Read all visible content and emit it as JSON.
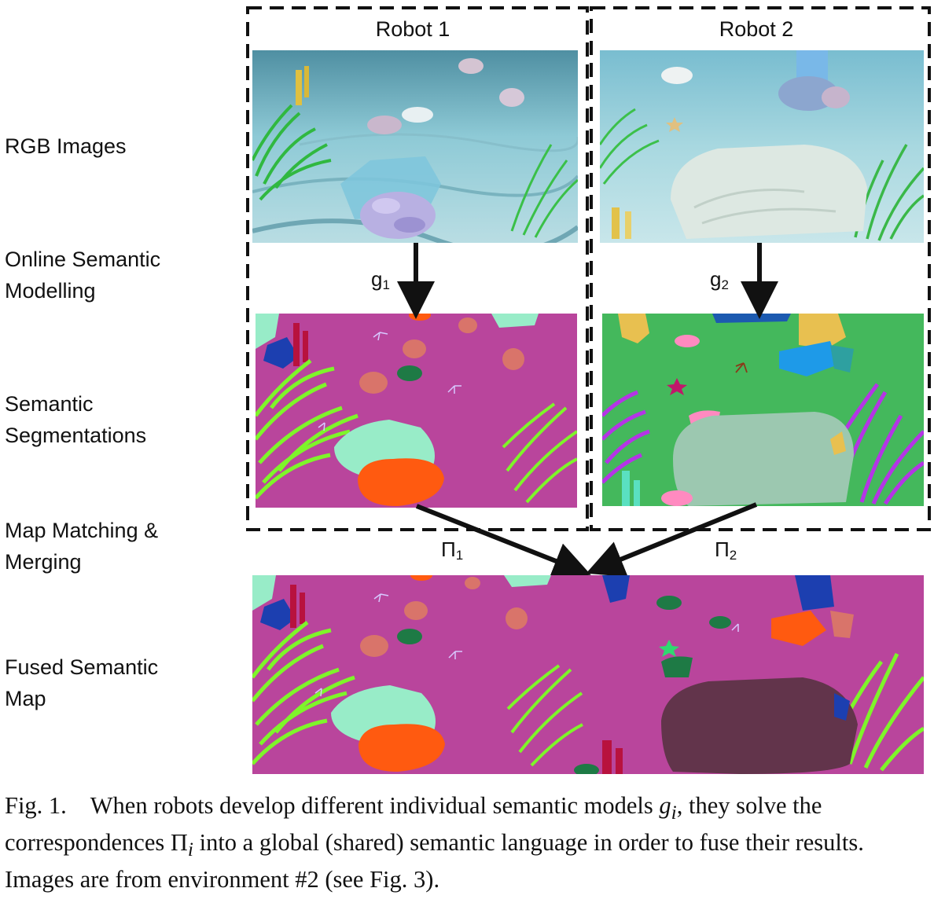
{
  "row_labels": [
    [
      "RGB Images"
    ],
    [
      "Online Semantic",
      "Modelling"
    ],
    [
      "Semantic",
      "Segmentations"
    ],
    [
      "Map Matching &",
      "Merging"
    ],
    [
      "Fused Semantic",
      "Map"
    ]
  ],
  "robots": [
    {
      "title": "Robot 1",
      "model_symbol": "g",
      "model_index": "1",
      "corr_symbol": "Π",
      "corr_index": "1"
    },
    {
      "title": "Robot 2",
      "model_symbol": "g",
      "model_index": "2",
      "corr_symbol": "Π",
      "corr_index": "2"
    }
  ],
  "caption": {
    "label": "Fig. 1.",
    "line1_a": "When robots develop different individual semantic models ",
    "g_i": "g",
    "g_sub": "i",
    "line1_b": ", they solve the correspondences ",
    "pi_i": "Π",
    "pi_sub": "i",
    "line1_c": " into a global (shared) semantic language in order to fuse their results. Images are from environment #2 (see Fig. 3)."
  },
  "colors": {
    "background_magenta": "#b9459c",
    "background_green": "#44b85c",
    "seaweed_lime": "#7ef52a",
    "coral_orange": "#ff5a10",
    "coral_mint": "#98ecc8",
    "salmon": "#d9746a",
    "dark_green": "#1e7a45",
    "rock_sage": "#9cc8b0",
    "rock_maroon": "#62344b",
    "coral_blue": "#1c3fb0",
    "purple": "#b534e6"
  }
}
